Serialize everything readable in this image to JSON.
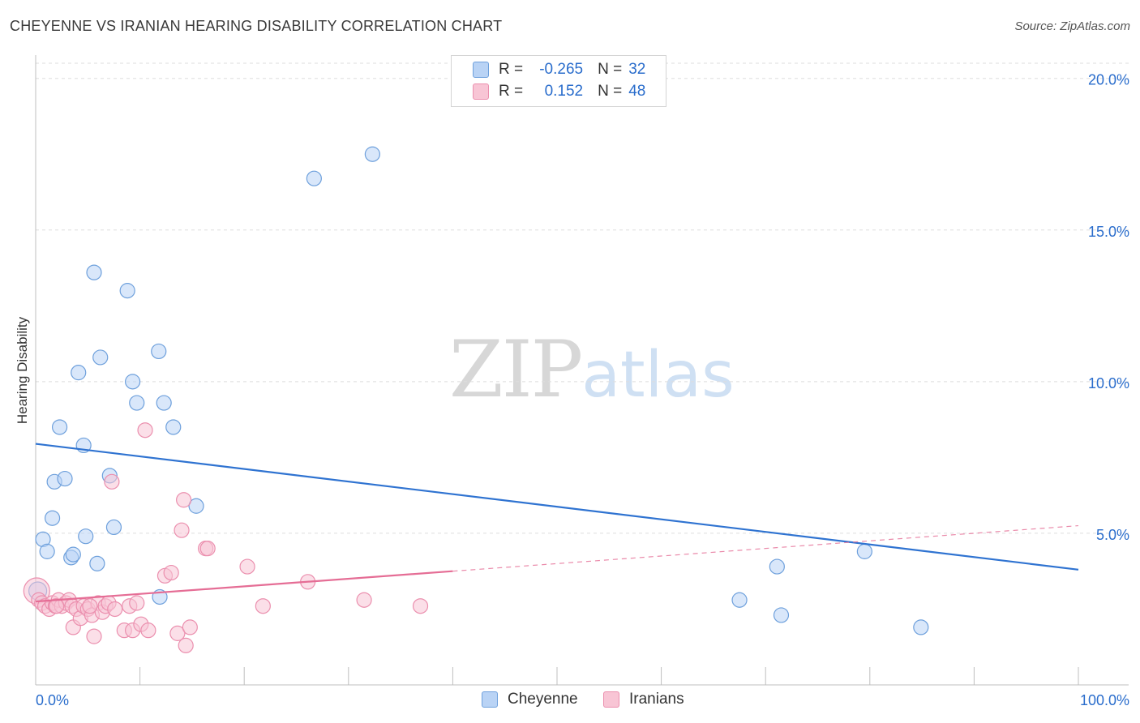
{
  "title": "CHEYENNE VS IRANIAN HEARING DISABILITY CORRELATION CHART",
  "source": "Source: ZipAtlas.com",
  "watermark": {
    "zip": "ZIP",
    "atlas": "atlas"
  },
  "legend": {
    "rows": [
      {
        "r_label": "R =",
        "r_value": "-0.265",
        "n_label": "N =",
        "n_value": "32"
      },
      {
        "r_label": "R =",
        "r_value": "0.152",
        "n_label": "N =",
        "n_value": "48"
      }
    ]
  },
  "colors": {
    "cheyenne_fill": "#b9d3f5",
    "cheyenne_stroke": "#6ea0dc",
    "cheyenne_line": "#2f73d1",
    "iranian_fill": "#f8c5d5",
    "iranian_stroke": "#eb8fae",
    "iranian_line": "#e56d95",
    "grid": "#dddddd",
    "tick_label": "#2a6dcc"
  },
  "chart_data": {
    "type": "scatter",
    "title": "CHEYENNE VS IRANIAN HEARING DISABILITY CORRELATION CHART",
    "xlabel": "",
    "ylabel": "Hearing Disability",
    "xlim": [
      0,
      100
    ],
    "ylim": [
      0,
      20.5
    ],
    "x_tick_labels": [
      "0.0%",
      "100.0%"
    ],
    "y_ticks": [
      5,
      10,
      15,
      20
    ],
    "y_tick_labels": [
      "5.0%",
      "10.0%",
      "15.0%",
      "20.0%"
    ],
    "grid": true,
    "legend_position": "bottom",
    "series": [
      {
        "name": "Cheyenne",
        "r": -0.265,
        "n": 32,
        "trend": {
          "x0": 0,
          "y0": 7.95,
          "x1": 100,
          "y1": 3.8,
          "dashed_from": null
        },
        "points": [
          [
            0.2,
            3.1
          ],
          [
            0.7,
            4.8
          ],
          [
            1.1,
            4.4
          ],
          [
            1.6,
            5.5
          ],
          [
            1.8,
            6.7
          ],
          [
            2.3,
            8.5
          ],
          [
            2.8,
            6.8
          ],
          [
            3.4,
            4.2
          ],
          [
            3.6,
            4.3
          ],
          [
            4.1,
            10.3
          ],
          [
            4.6,
            7.9
          ],
          [
            4.8,
            4.9
          ],
          [
            5.6,
            13.6
          ],
          [
            5.9,
            4.0
          ],
          [
            6.2,
            10.8
          ],
          [
            7.1,
            6.9
          ],
          [
            7.5,
            5.2
          ],
          [
            8.8,
            13.0
          ],
          [
            9.3,
            10.0
          ],
          [
            9.7,
            9.3
          ],
          [
            11.8,
            11.0
          ],
          [
            11.9,
            2.9
          ],
          [
            12.3,
            9.3
          ],
          [
            13.2,
            8.5
          ],
          [
            15.4,
            5.9
          ],
          [
            26.7,
            16.7
          ],
          [
            32.3,
            17.5
          ],
          [
            67.5,
            2.8
          ],
          [
            71.1,
            3.9
          ],
          [
            71.5,
            2.3
          ],
          [
            79.5,
            4.4
          ],
          [
            84.9,
            1.9
          ]
        ]
      },
      {
        "name": "Iranians",
        "r": 0.152,
        "n": 48,
        "trend": {
          "x0": 0,
          "y0": 2.75,
          "x1": 100,
          "y1": 5.25,
          "dashed_from": 40
        },
        "points": [
          [
            0.1,
            3.1
          ],
          [
            0.3,
            2.8
          ],
          [
            0.6,
            2.7
          ],
          [
            0.9,
            2.6
          ],
          [
            1.3,
            2.5
          ],
          [
            1.6,
            2.7
          ],
          [
            1.9,
            2.6
          ],
          [
            2.2,
            2.8
          ],
          [
            2.5,
            2.6
          ],
          [
            2.9,
            2.7
          ],
          [
            3.2,
            2.8
          ],
          [
            3.5,
            2.6
          ],
          [
            3.6,
            1.9
          ],
          [
            3.9,
            2.5
          ],
          [
            4.3,
            2.2
          ],
          [
            4.6,
            2.6
          ],
          [
            5.0,
            2.5
          ],
          [
            5.4,
            2.3
          ],
          [
            5.6,
            1.6
          ],
          [
            6.0,
            2.7
          ],
          [
            6.4,
            2.4
          ],
          [
            6.7,
            2.6
          ],
          [
            7.0,
            2.7
          ],
          [
            7.3,
            6.7
          ],
          [
            7.6,
            2.5
          ],
          [
            8.5,
            1.8
          ],
          [
            9.0,
            2.6
          ],
          [
            9.3,
            1.8
          ],
          [
            9.7,
            2.7
          ],
          [
            10.1,
            2.0
          ],
          [
            10.5,
            8.4
          ],
          [
            10.8,
            1.8
          ],
          [
            12.4,
            3.6
          ],
          [
            13.0,
            3.7
          ],
          [
            13.6,
            1.7
          ],
          [
            14.0,
            5.1
          ],
          [
            14.2,
            6.1
          ],
          [
            14.4,
            1.3
          ],
          [
            14.8,
            1.9
          ],
          [
            16.3,
            4.5
          ],
          [
            16.5,
            4.5
          ],
          [
            20.3,
            3.9
          ],
          [
            21.8,
            2.6
          ],
          [
            26.1,
            3.4
          ],
          [
            31.5,
            2.8
          ],
          [
            36.9,
            2.6
          ],
          [
            5.2,
            2.6
          ],
          [
            2.0,
            2.6
          ]
        ]
      }
    ]
  }
}
